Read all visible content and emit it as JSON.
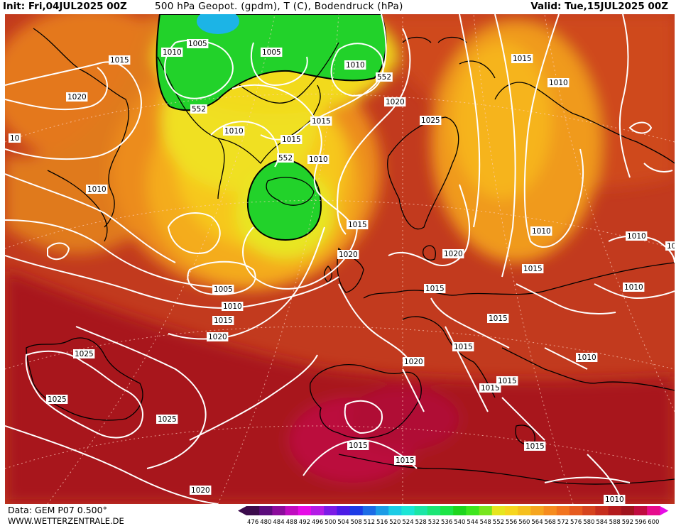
{
  "header": {
    "init": "Init: Fri,04JUL2025 00Z",
    "title": "500 hPa Geopot. (gpdm), T (C), Bodendruck (hPa)",
    "valid": "Valid: Tue,15JUL2025 00Z"
  },
  "footer": {
    "data_source": "Data: GEM P07 0.500°",
    "website": "WWW.WETTERZENTRALE.DE"
  },
  "legend": {
    "values": [
      "476",
      "480",
      "484",
      "488",
      "492",
      "496",
      "500",
      "504",
      "508",
      "512",
      "516",
      "520",
      "524",
      "528",
      "532",
      "536",
      "540",
      "544",
      "548",
      "552",
      "556",
      "560",
      "564",
      "568",
      "572",
      "576",
      "580",
      "584",
      "588",
      "592",
      "596",
      "600"
    ],
    "colors": [
      "#3c0c4c",
      "#5c0c7c",
      "#8c0c9c",
      "#c00cc0",
      "#e60ce6",
      "#b41ce6",
      "#7c1ce6",
      "#4c1ce6",
      "#1c3ce6",
      "#1c6ce6",
      "#1c9ce6",
      "#1ccce6",
      "#1ce6d6",
      "#1ce6a6",
      "#1ce676",
      "#1ce646",
      "#1ed61e",
      "#3ee61e",
      "#78e61e",
      "#e6e61e",
      "#f6d61e",
      "#f6c01e",
      "#f6a61e",
      "#f68c1e",
      "#f2741e",
      "#e65a1e",
      "#d6441e",
      "#c62e1e",
      "#b41c1e",
      "#a0141e",
      "#c00c40",
      "#e60c8c"
    ],
    "arrow_left_color": "#3c0c4c",
    "arrow_right_color": "#e60ce6"
  },
  "map": {
    "background_color": "#c23a1e",
    "contour_color": "#ffffff",
    "coast_color": "#000000",
    "isobar_labels": [
      {
        "text": "1005"
      },
      {
        "text": "1010"
      },
      {
        "text": "1005"
      },
      {
        "text": "1010"
      },
      {
        "text": "552"
      },
      {
        "text": "1015"
      },
      {
        "text": "1015"
      },
      {
        "text": "1010"
      },
      {
        "text": "1020"
      },
      {
        "text": "552"
      },
      {
        "text": "1020"
      },
      {
        "text": "1015"
      },
      {
        "text": "1025"
      },
      {
        "text": "1010"
      },
      {
        "text": "10"
      },
      {
        "text": "1010"
      },
      {
        "text": "1015"
      },
      {
        "text": "552"
      },
      {
        "text": "1010"
      },
      {
        "text": "1015"
      },
      {
        "text": "1020"
      },
      {
        "text": "1010"
      },
      {
        "text": "1020"
      },
      {
        "text": "1010"
      },
      {
        "text": "1015"
      },
      {
        "text": "1005"
      },
      {
        "text": "1010"
      },
      {
        "text": "1015"
      },
      {
        "text": "1015"
      },
      {
        "text": "1010"
      },
      {
        "text": "1020"
      },
      {
        "text": "1015"
      },
      {
        "text": "1015"
      },
      {
        "text": "1010"
      },
      {
        "text": "1025"
      },
      {
        "text": "1020"
      },
      {
        "text": "1015"
      },
      {
        "text": "1015"
      },
      {
        "text": "1025"
      },
      {
        "text": "1025"
      },
      {
        "text": "1015"
      },
      {
        "text": "1015"
      },
      {
        "text": "1015"
      },
      {
        "text": "1020"
      },
      {
        "text": "1010"
      },
      {
        "text": "10"
      }
    ]
  }
}
